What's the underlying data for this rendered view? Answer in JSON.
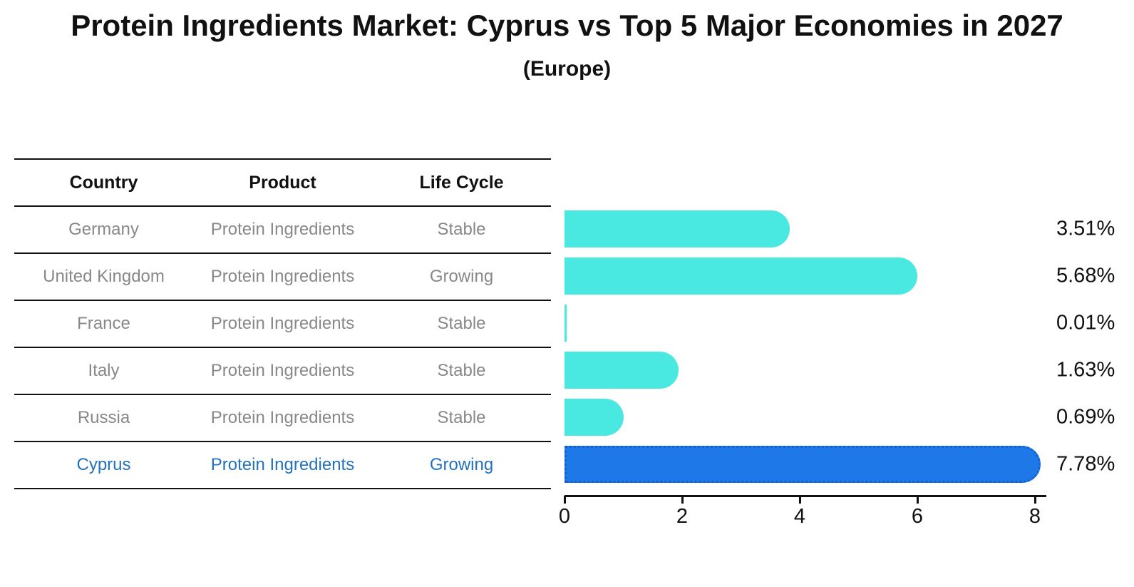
{
  "title": "Protein Ingredients Market: Cyprus vs Top 5 Major Economies in 2027",
  "subtitle": "(Europe)",
  "table": {
    "headers": [
      "Country",
      "Product",
      "Life Cycle"
    ],
    "rows": [
      {
        "country": "Germany",
        "product": "Protein Ingredients",
        "life_cycle": "Stable"
      },
      {
        "country": "United Kingdom",
        "product": "Protein Ingredients",
        "life_cycle": "Growing"
      },
      {
        "country": "France",
        "product": "Protein Ingredients",
        "life_cycle": "Stable"
      },
      {
        "country": "Italy",
        "product": "Protein Ingredients",
        "life_cycle": "Stable"
      },
      {
        "country": "Russia",
        "product": "Protein Ingredients",
        "life_cycle": "Stable"
      },
      {
        "country": "Cyprus",
        "product": "Protein Ingredients",
        "life_cycle": "Growing"
      }
    ]
  },
  "chart_data": {
    "type": "bar",
    "orientation": "horizontal",
    "title": "Protein Ingredients Market: Cyprus vs Top 5 Major Economies in 2027",
    "subtitle": "(Europe)",
    "categories": [
      "Germany",
      "United Kingdom",
      "France",
      "Italy",
      "Russia",
      "Cyprus"
    ],
    "values": [
      3.51,
      5.68,
      0.01,
      1.63,
      0.69,
      7.78
    ],
    "value_labels": [
      "3.51%",
      "5.68%",
      "0.01%",
      "1.63%",
      "0.69%",
      "7.78%"
    ],
    "xticks": [
      0,
      2,
      4,
      6,
      8
    ],
    "xlim": [
      0,
      8.2
    ],
    "grid": false,
    "legend": false,
    "highlight_category": "Cyprus",
    "colors": {
      "bar": "#49e8e1",
      "highlight_bar": "#1e78e8",
      "highlight_border": "#1261d4",
      "highlight_text": "#2471bd",
      "table_text": "#888888",
      "axis": "#111111"
    }
  }
}
